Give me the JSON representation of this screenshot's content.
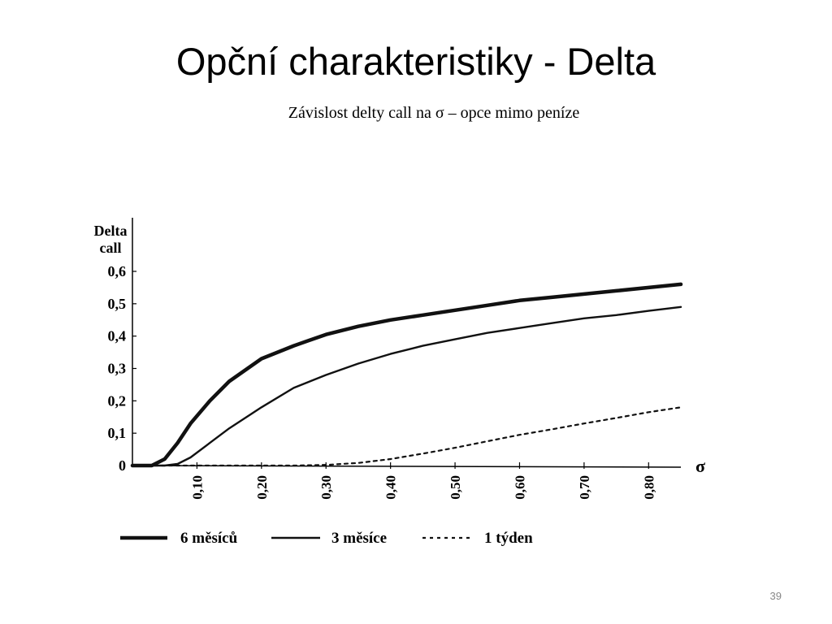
{
  "slide": {
    "title": "Opční charakteristiky - Delta",
    "subtitle": "Závislost delty call na σ – opce mimo peníze",
    "page_number": "39"
  },
  "chart_data": {
    "type": "line",
    "title": "Závislost delty call na σ – opce mimo peníze",
    "ylabel_lines": [
      "Delta",
      "call"
    ],
    "xlabel": "σ",
    "ylim": [
      0,
      0.6
    ],
    "xlim": [
      0,
      0.85
    ],
    "grid": false,
    "legend_position": "bottom",
    "y_ticks": [
      {
        "value": 0,
        "label": "0"
      },
      {
        "value": 0.1,
        "label": "0,1"
      },
      {
        "value": 0.2,
        "label": "0,2"
      },
      {
        "value": 0.3,
        "label": "0,3"
      },
      {
        "value": 0.4,
        "label": "0,4"
      },
      {
        "value": 0.5,
        "label": "0,5"
      },
      {
        "value": 0.6,
        "label": "0,6"
      }
    ],
    "x_ticks": [
      {
        "value": 0.1,
        "label": "0,10"
      },
      {
        "value": 0.2,
        "label": "0,20"
      },
      {
        "value": 0.3,
        "label": "0,30"
      },
      {
        "value": 0.4,
        "label": "0,40"
      },
      {
        "value": 0.5,
        "label": "0,50"
      },
      {
        "value": 0.6,
        "label": "0,60"
      },
      {
        "value": 0.7,
        "label": "0,70"
      },
      {
        "value": 0.8,
        "label": "0,80"
      }
    ],
    "series": [
      {
        "name": "6 měsíců",
        "style": "thick",
        "x": [
          0.03,
          0.05,
          0.07,
          0.09,
          0.12,
          0.15,
          0.2,
          0.25,
          0.3,
          0.35,
          0.4,
          0.45,
          0.5,
          0.55,
          0.6,
          0.65,
          0.7,
          0.75,
          0.8,
          0.85
        ],
        "y": [
          0,
          0.02,
          0.07,
          0.13,
          0.2,
          0.26,
          0.33,
          0.37,
          0.405,
          0.43,
          0.45,
          0.465,
          0.48,
          0.495,
          0.51,
          0.52,
          0.53,
          0.54,
          0.55,
          0.56
        ]
      },
      {
        "name": "3 měsíce",
        "style": "thin",
        "x": [
          0.05,
          0.07,
          0.09,
          0.12,
          0.15,
          0.2,
          0.25,
          0.3,
          0.35,
          0.4,
          0.45,
          0.5,
          0.55,
          0.6,
          0.65,
          0.7,
          0.75,
          0.8,
          0.85
        ],
        "y": [
          0,
          0.005,
          0.025,
          0.07,
          0.115,
          0.18,
          0.24,
          0.28,
          0.315,
          0.345,
          0.37,
          0.39,
          0.41,
          0.425,
          0.44,
          0.455,
          0.465,
          0.478,
          0.49
        ]
      },
      {
        "name": "1 týden",
        "style": "dashed",
        "x": [
          0.25,
          0.3,
          0.35,
          0.4,
          0.45,
          0.5,
          0.55,
          0.6,
          0.65,
          0.7,
          0.75,
          0.8,
          0.85
        ],
        "y": [
          0,
          0.002,
          0.008,
          0.02,
          0.037,
          0.055,
          0.075,
          0.095,
          0.112,
          0.13,
          0.147,
          0.165,
          0.18
        ]
      }
    ]
  }
}
